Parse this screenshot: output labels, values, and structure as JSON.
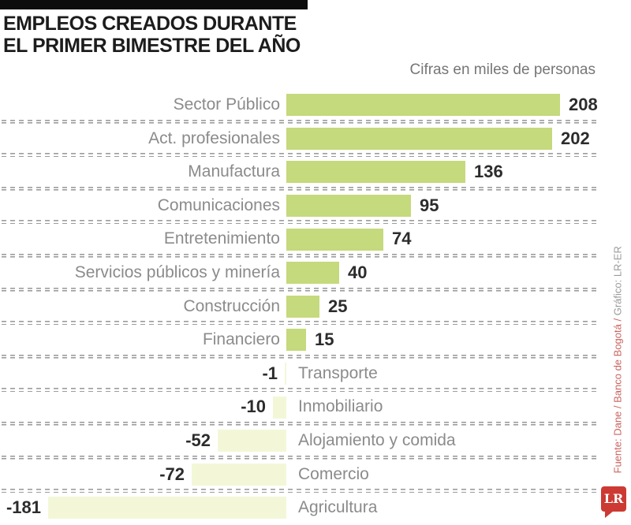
{
  "header": {
    "title_line1": "EMPLEOS CREADOS DURANTE",
    "title_line2": "EL PRIMER BIMESTRE DEL AÑO",
    "subtitle": "Cifras en miles de personas"
  },
  "chart_data": {
    "type": "bar",
    "orientation": "horizontal",
    "title": "EMPLEOS CREADOS DURANTE EL PRIMER BIMESTRE DEL AÑO",
    "unit_label": "Cifras en miles de personas",
    "categories": [
      "Sector Público",
      "Act. profesionales",
      "Manufactura",
      "Comunicaciones",
      "Entretenimiento",
      "Servicios públicos y minería",
      "Construcción",
      "Financiero",
      "Transporte",
      "Inmobiliario",
      "Alojamiento y comida",
      "Comercio",
      "Agricultura"
    ],
    "values": [
      208,
      202,
      136,
      95,
      74,
      40,
      25,
      15,
      -1,
      -10,
      -52,
      -72,
      -181
    ],
    "xlim": [
      -181,
      208
    ],
    "grid": "dashed-row-separators",
    "legend": "none",
    "colors": {
      "positive_bar": "#c5d97d",
      "negative_bar": "#f3f7d8",
      "category_label": "#8b8b8b",
      "value_label": "#2c2c2c",
      "separator": "#9c9c9c"
    }
  },
  "footer": {
    "source_text_red": "Fuente: Dane / Banco de Bogotá / ",
    "source_text_gray": "Gráfico: LR-ER",
    "source_red_color": "#c96360",
    "source_gray_color": "#9a9a9a",
    "logo_text": "LR",
    "logo_color": "#cc3a33"
  }
}
